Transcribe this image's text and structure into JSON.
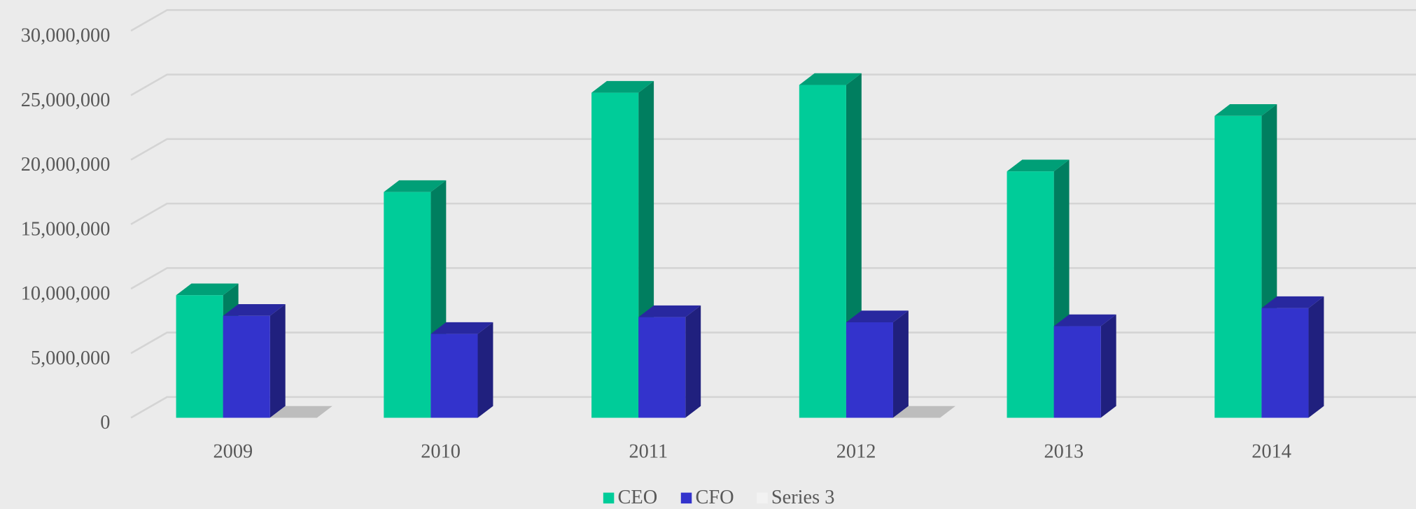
{
  "chart_data": {
    "type": "bar3d",
    "categories": [
      "2009",
      "2010",
      "2011",
      "2012",
      "2013",
      "2014"
    ],
    "series": [
      {
        "name": "CEO",
        "color": "#00cc99",
        "values": [
          9500000,
          17500000,
          25200000,
          25800000,
          19100000,
          23400000
        ]
      },
      {
        "name": "CFO",
        "color": "#3333cc",
        "values": [
          7900000,
          6500000,
          7800000,
          7400000,
          7100000,
          8500000
        ]
      },
      {
        "name": "Series 3",
        "color": "#f2f2f2",
        "values": [
          0,
          null,
          null,
          0,
          null,
          null
        ]
      }
    ],
    "ylim": [
      0,
      30000000
    ],
    "yticks": [
      {
        "value": 0,
        "label": "0"
      },
      {
        "value": 5000000,
        "label": "5,000,000"
      },
      {
        "value": 10000000,
        "label": "10,000,000"
      },
      {
        "value": 15000000,
        "label": "15,000,000"
      },
      {
        "value": 20000000,
        "label": "20,000,000"
      },
      {
        "value": 25000000,
        "label": "25,000,000"
      },
      {
        "value": 30000000,
        "label": "30,000,000"
      }
    ],
    "grid": true,
    "legend": "bottom"
  }
}
